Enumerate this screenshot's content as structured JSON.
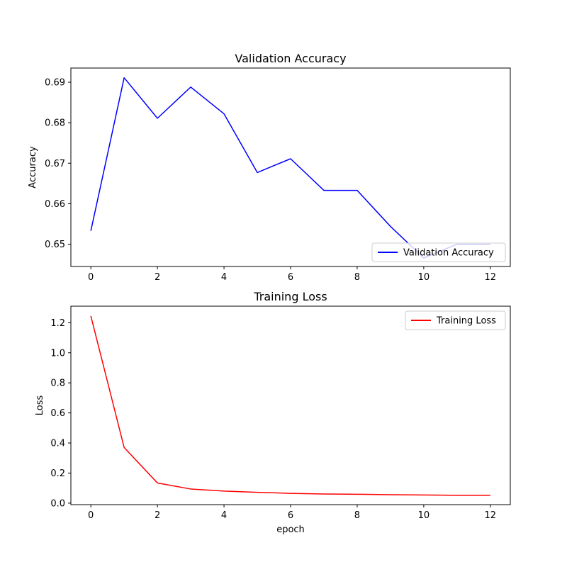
{
  "chart_data": [
    {
      "type": "line",
      "title": "Validation Accuracy",
      "xlabel": "",
      "ylabel": "Accuracy",
      "xlim": [
        -0.6,
        12.6
      ],
      "ylim": [
        0.6445,
        0.6935
      ],
      "x_ticks": [
        0,
        2,
        4,
        6,
        8,
        10,
        12
      ],
      "y_ticks": [
        0.65,
        0.66,
        0.67,
        0.68,
        0.69
      ],
      "y_tick_labels": [
        "0.65",
        "0.66",
        "0.67",
        "0.68",
        "0.69"
      ],
      "x_tick_labels": [
        "0",
        "2",
        "4",
        "6",
        "8",
        "10",
        "12"
      ],
      "legend_position": "lower-right",
      "grid": false,
      "series": [
        {
          "name": "Validation Accuracy",
          "color": "#0000ff",
          "x": [
            0,
            1,
            2,
            3,
            4,
            5,
            6,
            7,
            8,
            9,
            10,
            11,
            12
          ],
          "values": [
            0.6533,
            0.6911,
            0.6811,
            0.6888,
            0.6822,
            0.6677,
            0.6711,
            0.6633,
            0.6633,
            0.6544,
            0.6466,
            0.65,
            0.65
          ]
        }
      ]
    },
    {
      "type": "line",
      "title": "Training Loss",
      "xlabel": "epoch",
      "ylabel": "Loss",
      "xlim": [
        -0.6,
        12.6
      ],
      "ylim": [
        -0.01,
        1.31
      ],
      "x_ticks": [
        0,
        2,
        4,
        6,
        8,
        10,
        12
      ],
      "y_ticks": [
        0.0,
        0.2,
        0.4,
        0.6,
        0.8,
        1.0,
        1.2
      ],
      "y_tick_labels": [
        "0.0",
        "0.2",
        "0.4",
        "0.6",
        "0.8",
        "1.0",
        "1.2"
      ],
      "x_tick_labels": [
        "0",
        "2",
        "4",
        "6",
        "8",
        "10",
        "12"
      ],
      "legend_position": "upper-right",
      "grid": false,
      "series": [
        {
          "name": "Training Loss",
          "color": "#ff0000",
          "x": [
            0,
            1,
            2,
            3,
            4,
            5,
            6,
            7,
            8,
            9,
            10,
            11,
            12
          ],
          "values": [
            1.245,
            0.37,
            0.134,
            0.094,
            0.08,
            0.072,
            0.065,
            0.061,
            0.059,
            0.056,
            0.054,
            0.052,
            0.052
          ]
        }
      ]
    }
  ]
}
